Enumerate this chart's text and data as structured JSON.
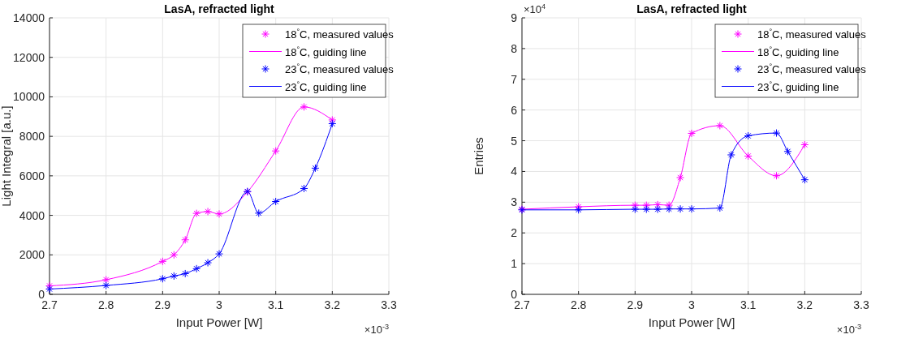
{
  "chart_data": [
    {
      "type": "scatter",
      "title": "LasA, refracted light",
      "xlabel": "Input Power [W]",
      "ylabel": "Light Integral [a.u.]",
      "xlim": [
        2.7,
        3.3
      ],
      "xticks": [
        2.7,
        2.8,
        2.9,
        3,
        3.1,
        3.2,
        3.3
      ],
      "ylim": [
        0,
        14000
      ],
      "yticks": [
        0,
        2000,
        4000,
        6000,
        8000,
        10000,
        12000,
        14000
      ],
      "grid": true,
      "legend": "top right",
      "annotations": [
        "×10$^{-3}$"
      ],
      "series": [
        {
          "name": "18$^{°}$C, measured values",
          "marker": "cross",
          "color": "#ff00ff",
          "x": [
            2.7,
            2.8,
            2.9,
            2.92,
            2.94,
            2.96,
            2.98,
            3.0,
            3.05,
            3.1,
            3.15,
            3.2
          ],
          "values": [
            430,
            740,
            1670,
            2000,
            2760,
            4100,
            4190,
            4070,
            5190,
            7260,
            9490,
            8830
          ]
        },
        {
          "name": "18$^{°}$C, guiding line",
          "type": "line",
          "marker": "none",
          "line_style": "solid",
          "color": "#ff00ff",
          "x": [
            2.7,
            2.8,
            2.9,
            2.92,
            2.94,
            2.96,
            2.98,
            3.0,
            3.05,
            3.1,
            3.15,
            3.2
          ],
          "values": [
            430,
            740,
            1670,
            2000,
            2760,
            4100,
            4190,
            4070,
            5190,
            7260,
            9490,
            8830
          ]
        },
        {
          "name": "23$^{°}$C, measured values",
          "marker": "cross",
          "color": "#0000ff",
          "x": [
            2.7,
            2.8,
            2.9,
            2.92,
            2.94,
            2.96,
            2.98,
            3.0,
            3.05,
            3.07,
            3.1,
            3.15,
            3.17,
            3.2
          ],
          "values": [
            270,
            450,
            790,
            930,
            1050,
            1300,
            1600,
            2050,
            5210,
            4110,
            4700,
            5360,
            6390,
            8640
          ]
        },
        {
          "name": "23$^{°}$C, guiding line",
          "type": "line",
          "marker": "none",
          "line_style": "solid",
          "color": "#0000ff",
          "x": [
            2.7,
            2.8,
            2.9,
            2.92,
            2.94,
            2.96,
            2.98,
            3.0,
            3.05,
            3.07,
            3.1,
            3.15,
            3.17,
            3.2
          ],
          "values": [
            270,
            450,
            790,
            930,
            1050,
            1300,
            1600,
            2050,
            5210,
            4110,
            4700,
            5360,
            6390,
            8640
          ]
        }
      ]
    },
    {
      "type": "scatter",
      "title": "LasA, refracted light",
      "xlabel": "Input Power [W]",
      "ylabel": "Entries",
      "xlim": [
        2.7,
        3.3
      ],
      "xticks": [
        2.7,
        2.8,
        2.9,
        3,
        3.1,
        3.2,
        3.3
      ],
      "ylim": [
        0,
        9
      ],
      "yticks": [
        0,
        1,
        2,
        3,
        4,
        5,
        6,
        7,
        8,
        9
      ],
      "grid": true,
      "legend": "top right",
      "annotations": [
        "×10$^{-3}$",
        "×10$^{4}$"
      ],
      "series": [
        {
          "name": "18$^{°}$C, measured values",
          "marker": "cross",
          "color": "#ff00ff",
          "x": [
            2.7,
            2.8,
            2.9,
            2.92,
            2.94,
            2.96,
            2.98,
            3.0,
            3.05,
            3.1,
            3.15,
            3.2
          ],
          "values": [
            2.77,
            2.85,
            2.9,
            2.9,
            2.92,
            2.9,
            3.8,
            5.24,
            5.49,
            4.5,
            3.86,
            4.87
          ]
        },
        {
          "name": "18$^{°}$C, guiding line",
          "type": "line",
          "marker": "none",
          "line_style": "solid",
          "color": "#ff00ff",
          "x": [
            2.7,
            2.8,
            2.9,
            2.92,
            2.94,
            2.96,
            2.98,
            3.0,
            3.05,
            3.1,
            3.15,
            3.2
          ],
          "values": [
            2.77,
            2.85,
            2.9,
            2.9,
            2.92,
            2.9,
            3.8,
            5.24,
            5.49,
            4.5,
            3.86,
            4.87
          ]
        },
        {
          "name": "23$^{°}$C, measured values",
          "marker": "cross",
          "color": "#0000ff",
          "x": [
            2.7,
            2.8,
            2.9,
            2.92,
            2.94,
            2.96,
            2.98,
            3.0,
            3.05,
            3.07,
            3.1,
            3.15,
            3.17,
            3.2
          ],
          "values": [
            2.75,
            2.75,
            2.77,
            2.77,
            2.77,
            2.78,
            2.78,
            2.78,
            2.81,
            4.54,
            5.16,
            5.25,
            4.65,
            3.73
          ]
        },
        {
          "name": "23$^{°}$C, guiding line",
          "type": "line",
          "marker": "none",
          "line_style": "solid",
          "color": "#0000ff",
          "x": [
            2.7,
            2.8,
            2.9,
            2.92,
            2.94,
            2.96,
            2.98,
            3.0,
            3.05,
            3.07,
            3.1,
            3.15,
            3.17,
            3.2
          ],
          "values": [
            2.75,
            2.75,
            2.77,
            2.77,
            2.77,
            2.78,
            2.78,
            2.78,
            2.81,
            4.54,
            5.16,
            5.25,
            4.65,
            3.73
          ]
        }
      ]
    }
  ]
}
